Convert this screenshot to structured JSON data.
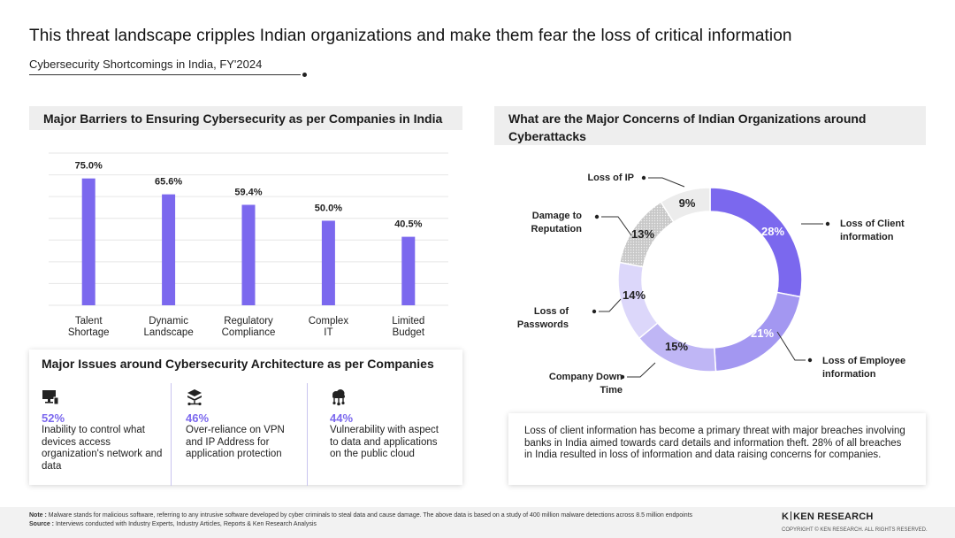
{
  "header": {
    "title": "This threat landscape cripples Indian organizations and make them fear the loss of critical information",
    "subtitle": "Cybersecurity Shortcomings in India, FY'2024"
  },
  "colors": {
    "accent": "#7b68ee",
    "bar": "#7b68ee",
    "panel_bg": "#eeeeee"
  },
  "chart_data": [
    {
      "type": "bar",
      "title": "Major Barriers to Ensuring Cybersecurity as per Companies in India",
      "categories": [
        "Talent Shortage",
        "Dynamic Landscape",
        "Regulatory Compliance",
        "Complex IT",
        "Limited Budget"
      ],
      "category_lines": [
        [
          "Talent",
          "Shortage"
        ],
        [
          "Dynamic",
          "Landscape"
        ],
        [
          "Regulatory",
          "Compliance"
        ],
        [
          "Complex",
          "IT"
        ],
        [
          "Limited",
          "Budget"
        ]
      ],
      "values": [
        75.0,
        65.6,
        59.4,
        50.0,
        40.5
      ],
      "data_labels": [
        "75.0%",
        "65.6%",
        "59.4%",
        "50.0%",
        "40.5%"
      ],
      "ylim": [
        0,
        90
      ],
      "grid": true
    },
    {
      "type": "pie",
      "title": "What are the Major Concerns of Indian Organizations around Cyberattacks",
      "categories": [
        "Loss of Client information",
        "Loss of Employee information",
        "Company Down Time",
        "Loss of Passwords",
        "Damage to Reputation",
        "Loss of IP"
      ],
      "category_lines": [
        [
          "Loss of Client",
          "information"
        ],
        [
          "Loss of Employee",
          "information"
        ],
        [
          "Company Down",
          "Time"
        ],
        [
          "Loss of",
          "Passwords"
        ],
        [
          "Damage  to",
          "Reputation"
        ],
        [
          "Loss of IP"
        ]
      ],
      "values": [
        28,
        21,
        15,
        14,
        13,
        9
      ],
      "data_labels": [
        "28%",
        "21%",
        "15%",
        "14%",
        "13%",
        "9%"
      ],
      "colors": [
        "#7b68ee",
        "#a397f1",
        "#bfb6f5",
        "#dcd7fa",
        "#d0d0d0",
        "#ececec"
      ],
      "donut": true
    }
  ],
  "issues": {
    "title": "Major Issues around Cybersecurity Architecture as per Companies",
    "items": [
      {
        "icon": "monitor-network-icon",
        "percent": "52%",
        "text": "Inability to control what devices access organization's network and data"
      },
      {
        "icon": "layers-network-icon",
        "percent": "46%",
        "text": "Over-reliance on VPN and IP Address for application protection"
      },
      {
        "icon": "cloud-network-icon",
        "percent": "44%",
        "text": "Vulnerability with aspect to data and applications on the public cloud"
      }
    ]
  },
  "insight": {
    "text": "Loss of client information has become a primary threat with major breaches involving banks in India aimed towards card details and information theft. 28% of all breaches in India resulted in loss of information and data raising concerns for companies."
  },
  "footer": {
    "note_label": "Note :",
    "note_text": "Malware stands for malicious software, referring to any intrusive software developed by cyber criminals to steal data and cause damage. The above data is based on a study of 400 million malware detections across 8.5 million endpoints",
    "source_label": "Source :",
    "source_text": "Interviews conducted with Industry Experts, Industry Articles, Reports & Ken Research Analysis",
    "logo_left": "K",
    "logo_right": "KEN RESEARCH",
    "copyright": "COPYRIGHT © KEN RESEARCH. ALL RIGHTS RESERVED."
  }
}
